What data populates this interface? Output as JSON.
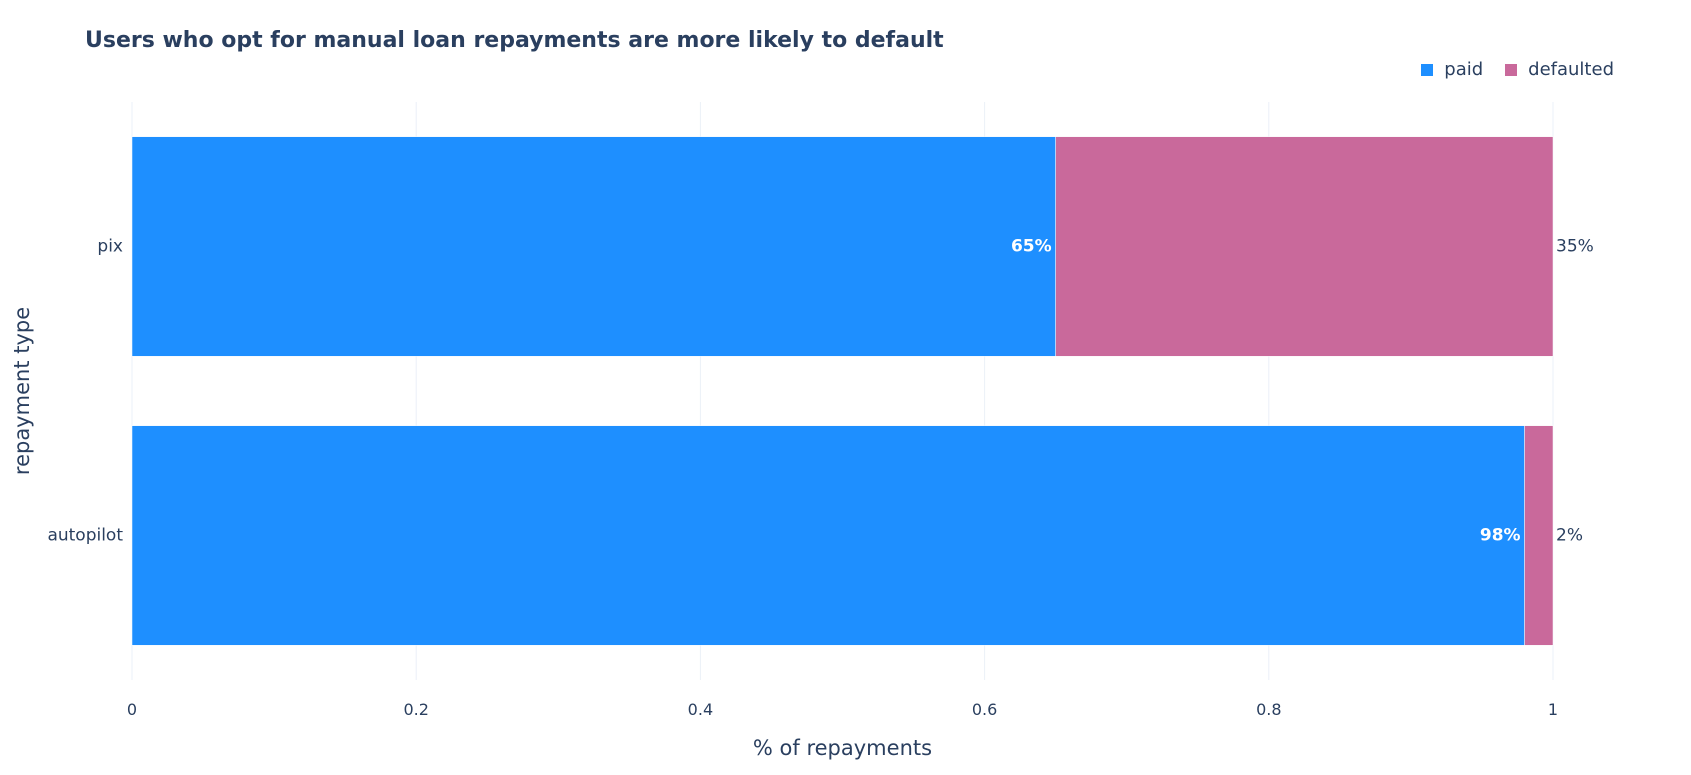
{
  "chart_data": {
    "type": "bar",
    "orientation": "horizontal",
    "stacked": true,
    "title": "Users who opt for manual loan repayments are more likely to default",
    "xlabel": "% of repayments",
    "ylabel": "repayment type",
    "categories": [
      "autopilot",
      "pix"
    ],
    "series": [
      {
        "name": "paid",
        "color": "#1e8fff",
        "values": [
          0.98,
          0.65
        ],
        "labels": [
          "98%",
          "65%"
        ],
        "label_position": "inside-end",
        "label_color": "#ffffff",
        "label_bold": true
      },
      {
        "name": "defaulted",
        "color": "#c9699b",
        "values": [
          0.02,
          0.35
        ],
        "labels": [
          "2%",
          "35%"
        ],
        "label_position": "outside",
        "label_color": "#2a3f5f",
        "label_bold": false
      }
    ],
    "xlim": [
      0,
      1
    ],
    "xticks": [
      0,
      0.2,
      0.4,
      0.6,
      0.8,
      1
    ],
    "xtick_labels": [
      "0",
      "0.2",
      "0.4",
      "0.6",
      "0.8",
      "1"
    ],
    "grid": true,
    "legend_position": "top-right"
  }
}
